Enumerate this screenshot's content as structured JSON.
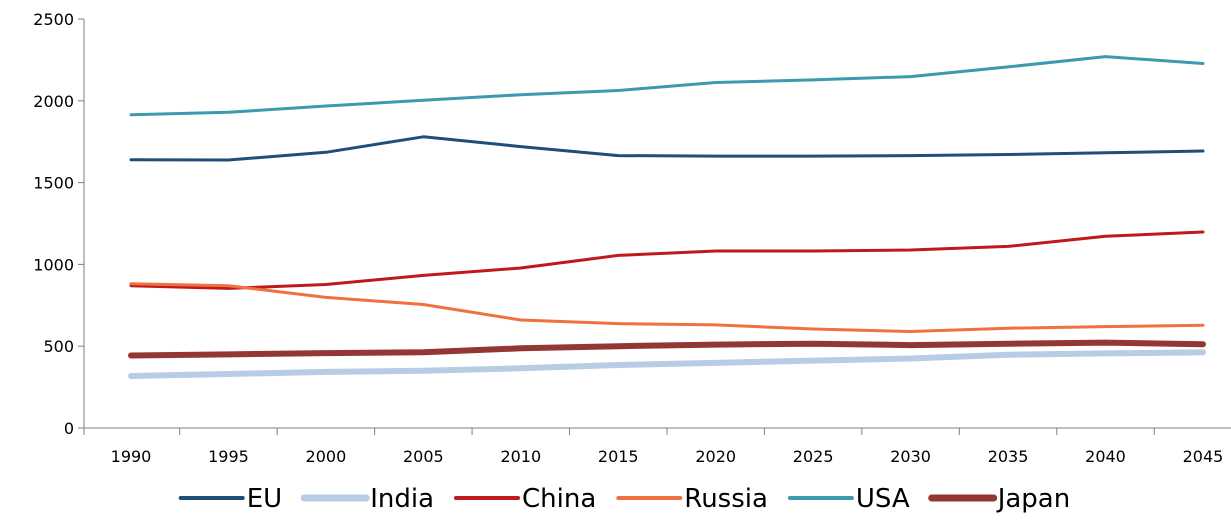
{
  "chart_data": {
    "type": "line",
    "title": "",
    "xlabel": "",
    "ylabel": "",
    "x": [
      "1990",
      "1995",
      "2000",
      "2005",
      "2010",
      "2015",
      "2020",
      "2025",
      "2030",
      "2035",
      "2040",
      "2045"
    ],
    "ylim": [
      0,
      2500
    ],
    "yticks": [
      0,
      500,
      1000,
      1500,
      2000,
      2500
    ],
    "grid": false,
    "legend_position": "bottom",
    "series": [
      {
        "name": "EU",
        "color": "#1F4E79",
        "line": "medium",
        "values": [
          1640,
          1638,
          1685,
          1780,
          1720,
          1665,
          1662,
          1662,
          1665,
          1672,
          1682,
          1693
        ]
      },
      {
        "name": "India",
        "color": "#B8CCE4",
        "line": "thick",
        "values": [
          318,
          330,
          343,
          350,
          365,
          385,
          398,
          412,
          425,
          448,
          456,
          462
        ]
      },
      {
        "name": "China",
        "color": "#C0191B",
        "line": "medium",
        "values": [
          870,
          853,
          877,
          933,
          978,
          1055,
          1082,
          1082,
          1088,
          1110,
          1172,
          1198
        ]
      },
      {
        "name": "Russia",
        "color": "#F07040",
        "line": "medium",
        "values": [
          882,
          870,
          798,
          755,
          660,
          638,
          630,
          605,
          590,
          610,
          620,
          628
        ]
      },
      {
        "name": "USA",
        "color": "#3B9AAD",
        "line": "medium",
        "values": [
          1915,
          1930,
          1968,
          2003,
          2037,
          2063,
          2112,
          2128,
          2148,
          2207,
          2270,
          2228
        ]
      },
      {
        "name": "Japan",
        "color": "#943634",
        "line": "thick",
        "values": [
          443,
          450,
          458,
          463,
          487,
          500,
          510,
          515,
          507,
          515,
          522,
          512
        ]
      }
    ]
  }
}
